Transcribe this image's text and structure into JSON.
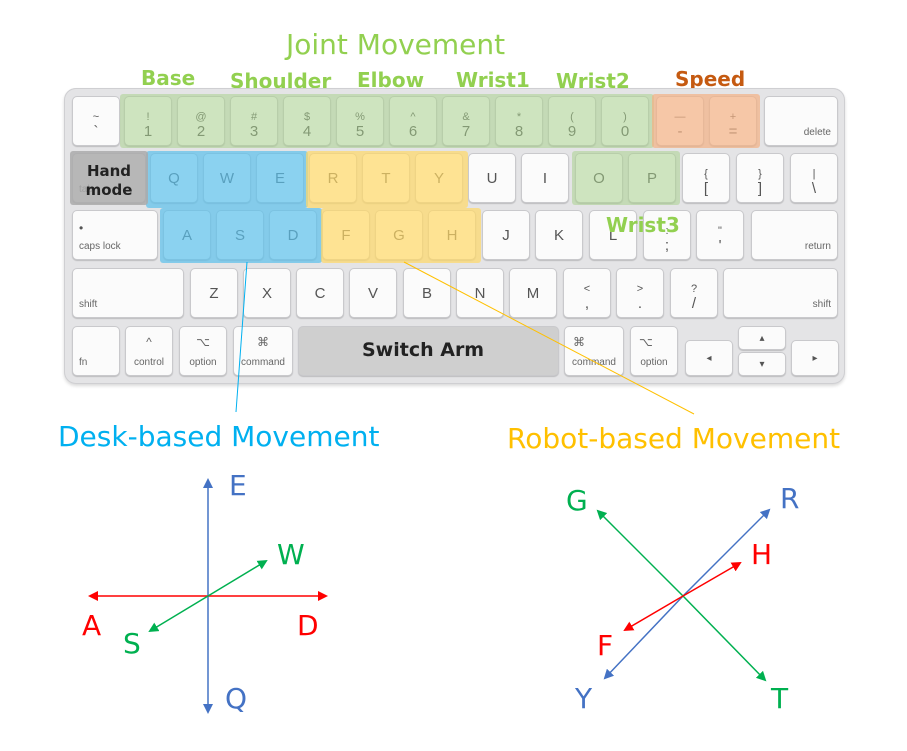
{
  "titles": {
    "joint_movement": "Joint Movement",
    "desk_based": "Desk-based Movement",
    "robot_based": "Robot-based Movement"
  },
  "joint_labels": {
    "base": "Base",
    "shoulder": "Shoulder",
    "elbow": "Elbow",
    "wrist1": "Wrist1",
    "wrist2": "Wrist2",
    "wrist3": "Wrist3",
    "speed": "Speed"
  },
  "overlay_labels": {
    "hand_mode_line1": "Hand",
    "hand_mode_line2": "mode",
    "switch_arm": "Switch Arm"
  },
  "keyboard": {
    "row1": [
      {
        "top": "~",
        "bot": "`"
      },
      {
        "top": "!",
        "bot": "1"
      },
      {
        "top": "@",
        "bot": "2"
      },
      {
        "top": "#",
        "bot": "3"
      },
      {
        "top": "$",
        "bot": "4"
      },
      {
        "top": "%",
        "bot": "5"
      },
      {
        "top": "^",
        "bot": "6"
      },
      {
        "top": "&",
        "bot": "7"
      },
      {
        "top": "*",
        "bot": "8"
      },
      {
        "top": "(",
        "bot": "9"
      },
      {
        "top": ")",
        "bot": "0"
      },
      {
        "top": "—",
        "bot": "-"
      },
      {
        "top": "+",
        "bot": "="
      }
    ],
    "delete": "delete",
    "tab": "tab",
    "row2": [
      "Q",
      "W",
      "E",
      "R",
      "T",
      "Y",
      "U",
      "I",
      "O",
      "P"
    ],
    "bracket_open": {
      "top": "{",
      "bot": "["
    },
    "bracket_close": {
      "top": "}",
      "bot": "]"
    },
    "backslash": {
      "top": "|",
      "bot": "\\"
    },
    "caps_lock": "caps lock",
    "row3": [
      "A",
      "S",
      "D",
      "F",
      "G",
      "H",
      "J",
      "K",
      "L"
    ],
    "semicolon": {
      "top": ":",
      "bot": ";"
    },
    "quote": {
      "top": "\"",
      "bot": "'"
    },
    "return": "return",
    "shift_left": "shift",
    "row4": [
      "Z",
      "X",
      "C",
      "V",
      "B",
      "N",
      "M"
    ],
    "comma": {
      "top": "<",
      "bot": ","
    },
    "period": {
      "top": ">",
      "bot": "."
    },
    "slash": {
      "top": "?",
      "bot": "/"
    },
    "shift_right": "shift",
    "fn": "fn",
    "control": {
      "sym": "^",
      "label": "control"
    },
    "option_left": {
      "sym": "⌥",
      "label": "option"
    },
    "command_left": {
      "sym": "⌘",
      "label": "command"
    },
    "command_right": {
      "sym": "⌘",
      "label": "command"
    },
    "option_right": {
      "sym": "⌥",
      "label": "option"
    },
    "arrow_left": "◂",
    "arrow_up": "▴",
    "arrow_down": "▾",
    "arrow_right": "▸"
  },
  "desk_axes": {
    "E": "E",
    "Q": "Q",
    "W": "W",
    "S": "S",
    "A": "A",
    "D": "D"
  },
  "robot_axes": {
    "G": "G",
    "R": "R",
    "H": "H",
    "F": "F",
    "Y": "Y",
    "T": "T"
  },
  "colors": {
    "green_label": "#92d050",
    "green_highlight": "#a9d18e",
    "blue_highlight": "#5bc0eb",
    "yellow_highlight": "#ffd966",
    "orange_highlight": "#f4b183",
    "speed_text": "#c55a11",
    "desk_title": "#00b0f0",
    "robot_title": "#ffc000",
    "axis_blue": "#4472c4",
    "axis_red": "#ff0000",
    "axis_green": "#00b050"
  }
}
